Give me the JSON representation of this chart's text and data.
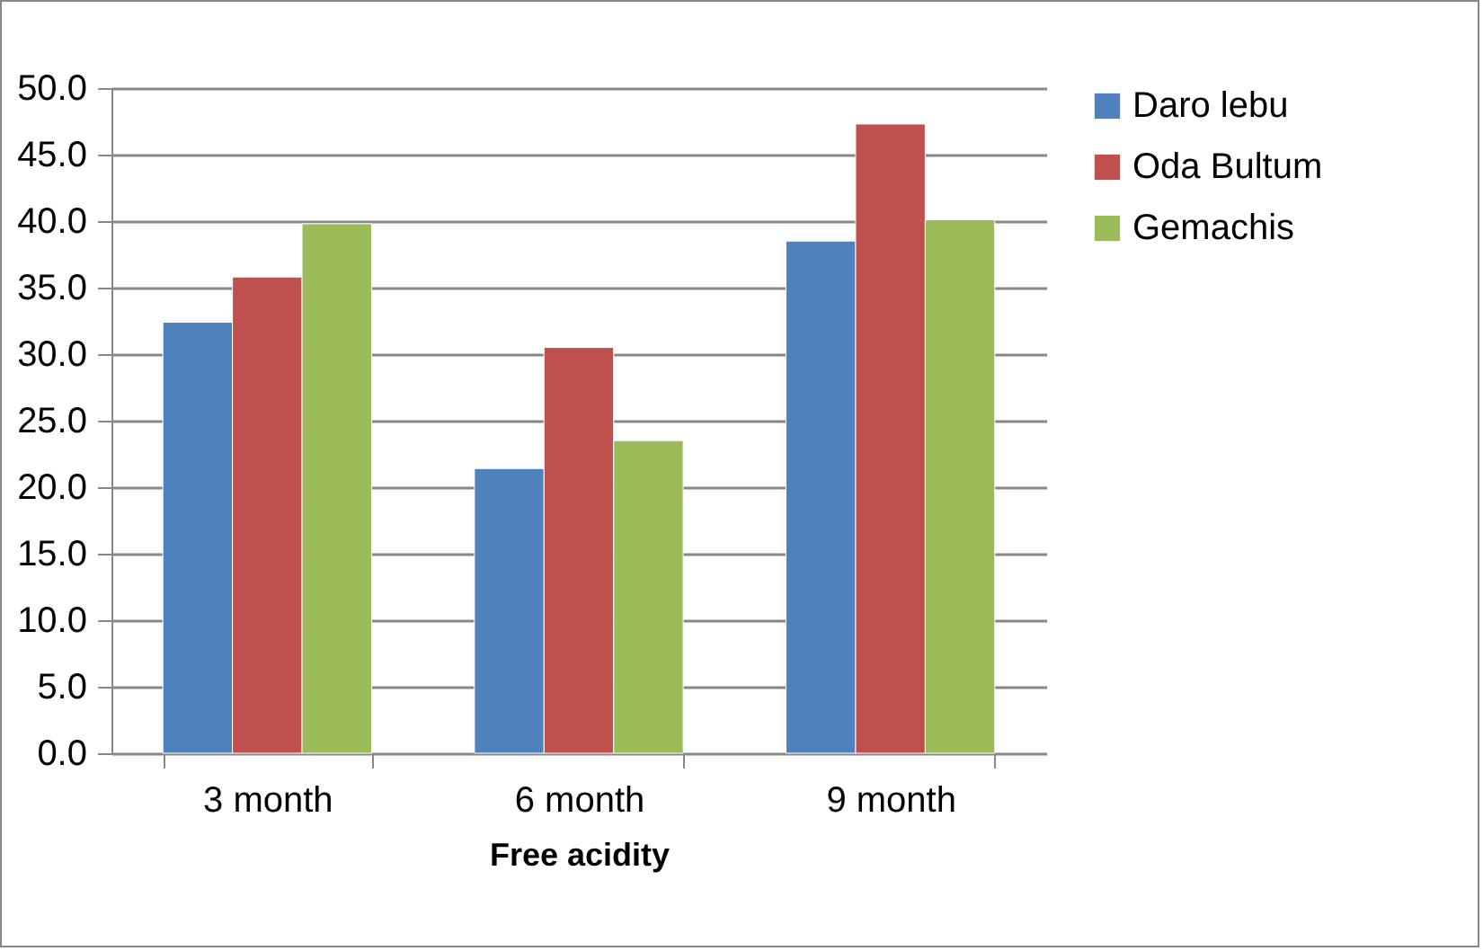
{
  "chart_data": {
    "type": "bar",
    "xlabel": "Free acidity",
    "categories": [
      "3 month",
      "6 month",
      "9 month"
    ],
    "series": [
      {
        "name": "Daro lebu",
        "color": "#4f81bd",
        "values": [
          32.4,
          21.4,
          38.5
        ]
      },
      {
        "name": "Oda Bultum",
        "color": "#c0504d",
        "values": [
          35.8,
          30.5,
          47.3
        ]
      },
      {
        "name": "Gemachis",
        "color": "#9bbb59",
        "values": [
          39.8,
          23.5,
          40.1
        ]
      }
    ],
    "ylim": [
      0,
      50
    ],
    "yticks": [
      {
        "value": 0,
        "label": "0.0"
      },
      {
        "value": 5,
        "label": "5.0"
      },
      {
        "value": 10,
        "label": "10.0"
      },
      {
        "value": 15,
        "label": "15.0"
      },
      {
        "value": 20,
        "label": "20.0"
      },
      {
        "value": 25,
        "label": "25.0"
      },
      {
        "value": 30,
        "label": "30.0"
      },
      {
        "value": 35,
        "label": "35.0"
      },
      {
        "value": 40,
        "label": "40.0"
      },
      {
        "value": 45,
        "label": "45.0"
      },
      {
        "value": 50,
        "label": "50.0"
      }
    ],
    "grid": "y",
    "legend": "right"
  }
}
